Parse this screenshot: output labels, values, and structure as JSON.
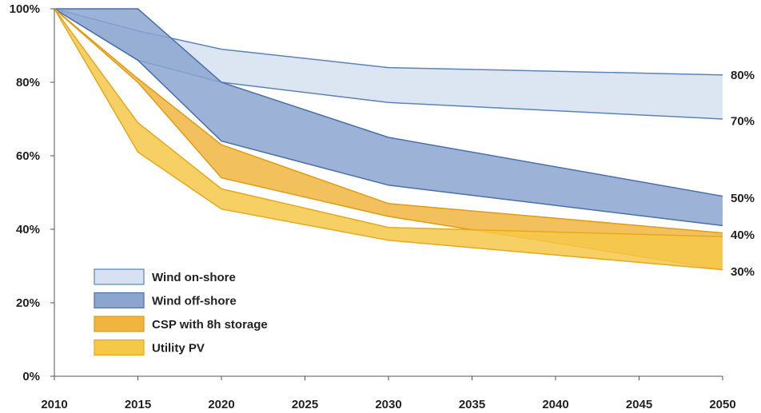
{
  "chart_data": {
    "type": "area",
    "x": [
      2010,
      2015,
      2020,
      2030,
      2050
    ],
    "xlim": [
      2010,
      2050
    ],
    "ylim": [
      0,
      100
    ],
    "x_ticks": [
      "2010",
      "2015",
      "2020",
      "2025",
      "2030",
      "2035",
      "2040",
      "2045",
      "2050"
    ],
    "y_ticks": [
      "0%",
      "20%",
      "40%",
      "60%",
      "80%",
      "100%"
    ],
    "grid": false,
    "legend_position": "bottom-left",
    "series": [
      {
        "name": "Wind on-shore",
        "upper": [
          100,
          94,
          89,
          84,
          82
        ],
        "lower": [
          100,
          86,
          80,
          74.5,
          70
        ],
        "fill": "#d6e2f1",
        "stroke": "#5b82be"
      },
      {
        "name": "Wind off-shore",
        "upper": [
          100,
          100,
          80,
          65,
          49
        ],
        "lower": [
          100,
          86,
          64,
          52,
          41
        ],
        "fill": "#8ba5cf",
        "stroke": "#4a6fae"
      },
      {
        "name": "CSP with 8h storage",
        "upper": [
          100,
          81,
          63,
          47,
          39
        ],
        "lower": [
          100,
          80,
          54,
          43.5,
          29
        ],
        "fill": "#f0b53f",
        "stroke": "#e39b12"
      },
      {
        "name": "Utility PV",
        "upper": [
          100,
          69,
          51,
          40.5,
          38
        ],
        "lower": [
          100,
          61,
          45.5,
          37,
          29
        ],
        "fill": "#f6c84a",
        "stroke": "#e8a81a"
      }
    ],
    "end_labels": [
      "80%",
      "70%",
      "50%",
      "40%",
      "30%"
    ],
    "end_label_values": [
      82,
      69.5,
      48.5,
      38.5,
      28.5
    ]
  }
}
